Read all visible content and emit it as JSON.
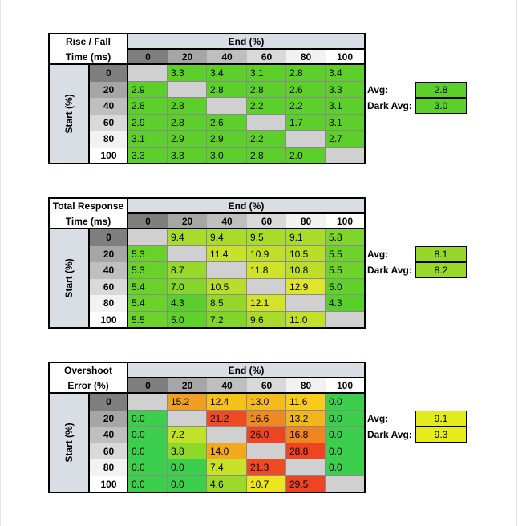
{
  "col_colors": [
    "#7f7f7f",
    "#a6a6a6",
    "#bfbfbf",
    "#d9d9d9",
    "#f2f2f2",
    "#ffffff"
  ],
  "row_colors": [
    "#7f7f7f",
    "#a6a6a6",
    "#bfbfbf",
    "#d9d9d9",
    "#f2f2f2",
    "#ffffff"
  ],
  "diagonal_color": "#d0d0d0",
  "tables": [
    {
      "id": "rise-fall",
      "title_line1": "Rise / Fall",
      "title_line2": "Time (ms)",
      "end_label": "End (%)",
      "start_label": "Start (%)",
      "columns": [
        "0",
        "20",
        "40",
        "60",
        "80",
        "100"
      ],
      "rows": [
        "0",
        "20",
        "40",
        "60",
        "80",
        "100"
      ],
      "values": [
        [
          "",
          "3.3",
          "3.4",
          "3.1",
          "2.8",
          "3.4"
        ],
        [
          "2.9",
          "",
          "2.8",
          "2.8",
          "2.6",
          "3.3"
        ],
        [
          "2.8",
          "2.8",
          "",
          "2.2",
          "2.2",
          "3.1"
        ],
        [
          "2.9",
          "2.8",
          "2.6",
          "",
          "1.7",
          "3.1"
        ],
        [
          "3.1",
          "2.9",
          "2.9",
          "2.2",
          "",
          "2.7"
        ],
        [
          "3.3",
          "3.3",
          "3.0",
          "2.8",
          "2.0",
          ""
        ]
      ],
      "colors": [
        [
          null,
          "#5ccf2a",
          "#5ccf2a",
          "#5ccf2a",
          "#5ccf2a",
          "#5ccf2a"
        ],
        [
          "#5ccf2a",
          null,
          "#5ccf2a",
          "#5ccf2a",
          "#5ccf2a",
          "#5ccf2a"
        ],
        [
          "#5ccf2a",
          "#5ccf2a",
          null,
          "#5ccf2a",
          "#5ccf2a",
          "#5ccf2a"
        ],
        [
          "#5ccf2a",
          "#5ccf2a",
          "#5ccf2a",
          null,
          "#5ccf2a",
          "#5ccf2a"
        ],
        [
          "#5ccf2a",
          "#5ccf2a",
          "#5ccf2a",
          "#5ccf2a",
          null,
          "#5ccf2a"
        ],
        [
          "#5ccf2a",
          "#5ccf2a",
          "#5ccf2a",
          "#5ccf2a",
          "#5ccf2a",
          null
        ]
      ],
      "avg_label": "Avg:",
      "avg": "2.8",
      "avg_color": "#5ccf2a",
      "dark_avg_label": "Dark Avg:",
      "dark_avg": "3.0",
      "dark_avg_color": "#5ccf2a"
    },
    {
      "id": "total-response",
      "title_line1": "Total Response",
      "title_line2": "Time (ms)",
      "end_label": "End (%)",
      "start_label": "Start (%)",
      "columns": [
        "0",
        "20",
        "40",
        "60",
        "80",
        "100"
      ],
      "rows": [
        "0",
        "20",
        "40",
        "60",
        "80",
        "100"
      ],
      "values": [
        [
          "",
          "9.4",
          "9.4",
          "9.5",
          "9.1",
          "5.8"
        ],
        [
          "5.3",
          "",
          "11.4",
          "10.9",
          "10.5",
          "5.5"
        ],
        [
          "5.3",
          "8.7",
          "",
          "11.8",
          "10.8",
          "5.5"
        ],
        [
          "5.4",
          "7.0",
          "10.5",
          "",
          "12.9",
          "5.0"
        ],
        [
          "5.4",
          "4.3",
          "8.5",
          "12.1",
          "",
          "4.3"
        ],
        [
          "5.5",
          "5.0",
          "7.2",
          "9.6",
          "11.0",
          ""
        ]
      ],
      "colors": [
        [
          null,
          "#a8db2a",
          "#a8db2a",
          "#a8db2a",
          "#a8db2a",
          "#7fd52a"
        ],
        [
          "#68d22a",
          null,
          "#c8e12a",
          "#c0df2a",
          "#b8de2a",
          "#6dd22a"
        ],
        [
          "#68d22a",
          "#98d82a",
          null,
          "#d0e22a",
          "#bcde2a",
          "#6dd22a"
        ],
        [
          "#6ad22a",
          "#86d52a",
          "#b8de2a",
          null,
          "#dfe52a",
          "#60d02a"
        ],
        [
          "#6ad22a",
          "#58cf2a",
          "#94d72a",
          "#d4e32a",
          null,
          "#58cf2a"
        ],
        [
          "#6dd22a",
          "#60d02a",
          "#84d52a",
          "#aadb2a",
          "#c2df2a",
          null
        ]
      ],
      "avg_label": "Avg:",
      "avg": "8.1",
      "avg_color": "#96d82a",
      "dark_avg_label": "Dark Avg:",
      "dark_avg": "8.2",
      "dark_avg_color": "#98d82a"
    },
    {
      "id": "overshoot",
      "title_line1": "Overshoot",
      "title_line2": "Error (%)",
      "end_label": "End (%)",
      "start_label": "Start (%)",
      "columns": [
        "0",
        "20",
        "40",
        "60",
        "80",
        "100"
      ],
      "rows": [
        "0",
        "20",
        "40",
        "60",
        "80",
        "100"
      ],
      "values": [
        [
          "",
          "15.2",
          "12.4",
          "13.0",
          "11.6",
          "0.0"
        ],
        [
          "0.0",
          "",
          "21.2",
          "16.6",
          "13.2",
          "0.0"
        ],
        [
          "0.0",
          "7.2",
          "",
          "26.0",
          "16.8",
          "0.0"
        ],
        [
          "0.0",
          "3.8",
          "14.0",
          "",
          "28.8",
          "0.0"
        ],
        [
          "0.0",
          "0.0",
          "7.4",
          "21.3",
          "",
          "0.0"
        ],
        [
          "0.0",
          "0.0",
          "4.6",
          "10.7",
          "29.5",
          ""
        ]
      ],
      "colors": [
        [
          null,
          "#f0a020",
          "#f5c21c",
          "#f3bb1c",
          "#f7cc1c",
          "#3ccf4e"
        ],
        [
          "#3ccf4e",
          null,
          "#ef4a22",
          "#ef8a22",
          "#f2b51c",
          "#3ccf4e"
        ],
        [
          "#3ccf4e",
          "#c2e22a",
          null,
          "#ef4422",
          "#ef8622",
          "#3ccf4e"
        ],
        [
          "#3ccf4e",
          "#8ed82a",
          "#f2aa1c",
          null,
          "#ef4422",
          "#3ccf4e"
        ],
        [
          "#3ccf4e",
          "#3ccf4e",
          "#c8e22a",
          "#ef4a22",
          null,
          "#3ccf4e"
        ],
        [
          "#3ccf4e",
          "#3ccf4e",
          "#9cd92a",
          "#ece41c",
          "#ef4422",
          null
        ]
      ],
      "avg_label": "Avg:",
      "avg": "9.1",
      "avg_color": "#e2ec1c",
      "dark_avg_label": "Dark Avg:",
      "dark_avg": "9.3",
      "dark_avg_color": "#e6ec1c"
    }
  ]
}
